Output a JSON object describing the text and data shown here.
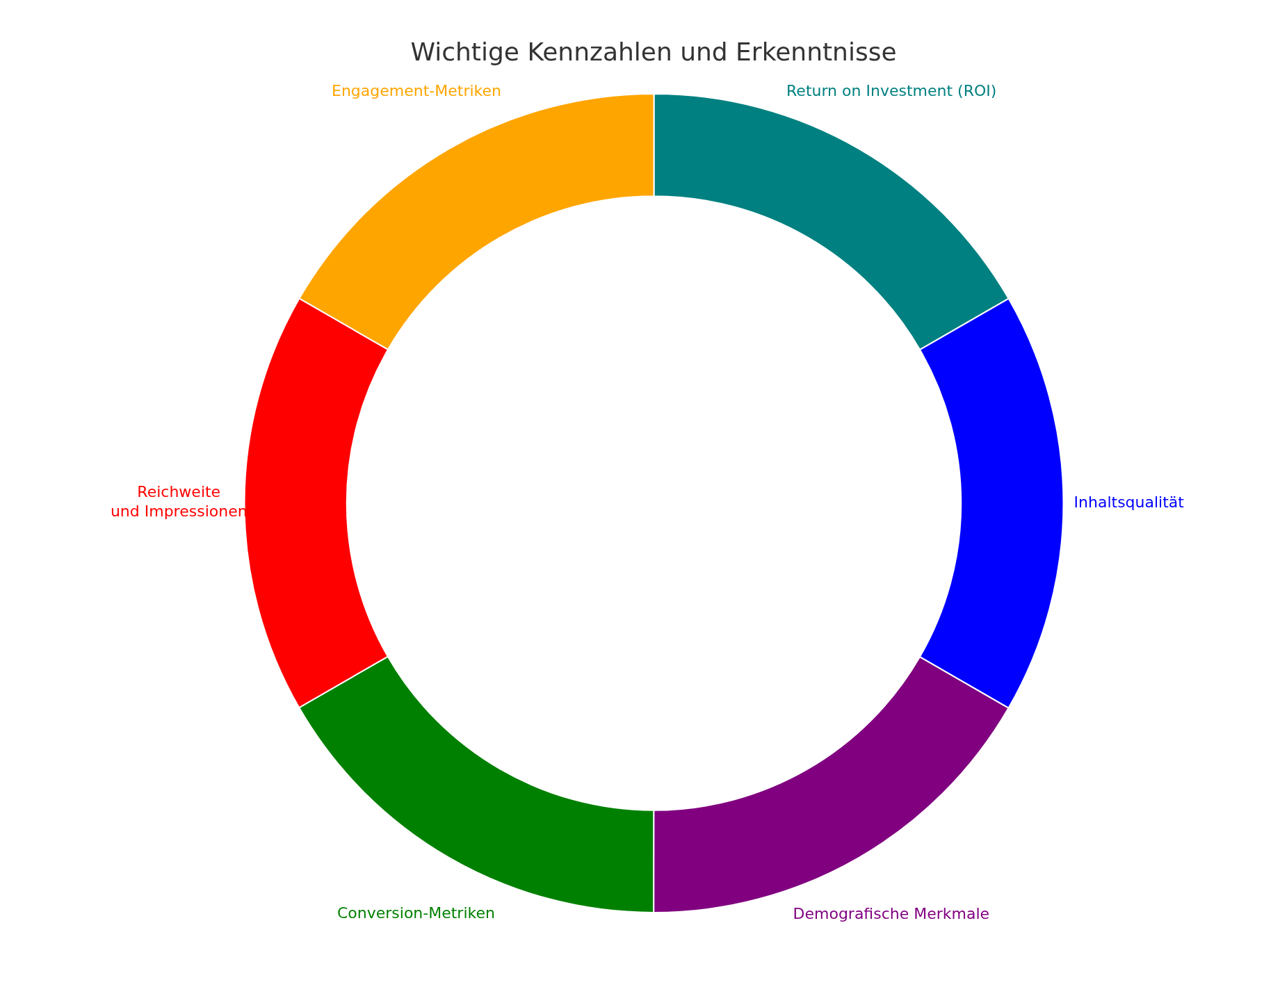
{
  "chart_data": {
    "type": "donut",
    "title": "Wichtige Kennzahlen und Erkenntnisse",
    "categories": [
      "Return on Investment (ROI)",
      "Inhaltsqualität",
      "Demografische Merkmale",
      "Conversion-Metriken",
      "Reichweite\nund Impressionen",
      "Engagement-Metriken"
    ],
    "values": [
      16.67,
      16.67,
      16.67,
      16.67,
      16.66,
      16.66
    ],
    "colors": [
      "#008080",
      "#0000ff",
      "#800080",
      "#008000",
      "#ff0000",
      "#ffa500"
    ],
    "legend": false
  }
}
